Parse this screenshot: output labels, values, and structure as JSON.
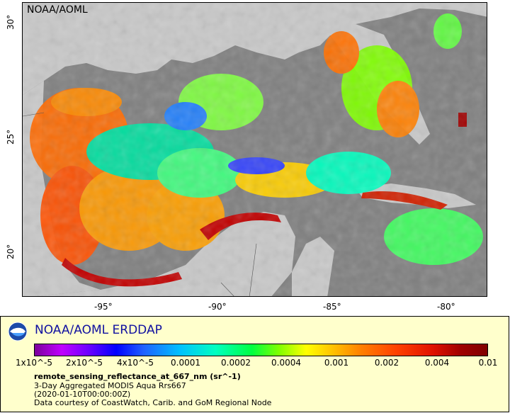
{
  "map": {
    "credit": "NOAA/AOML",
    "lat_labels": [
      "30°",
      "25°",
      "20°"
    ],
    "lon_labels": [
      "-95°",
      "-90°",
      "-85°",
      "-80°"
    ],
    "colors": {
      "ocean_nodata": "#7f7f7f",
      "land": "#c8c8c8"
    }
  },
  "legend": {
    "title": "NOAA/AOML ERDDAP",
    "colorbar_ticks": [
      "1x10^-5",
      "2x10^-5",
      "4x10^-5",
      "0.0001",
      "0.0002",
      "0.0004",
      "0.001",
      "0.002",
      "0.004",
      "0.01"
    ],
    "variable": "remote_sensing_reflectance_at_667_nm (sr^-1)",
    "line1": "3-Day Aggregated MODIS Aqua Rrs667",
    "line2": "(2020-01-10T00:00:00Z)",
    "line3": "Data courtesy of CoastWatch, Carib. and GoM Regional Node"
  }
}
